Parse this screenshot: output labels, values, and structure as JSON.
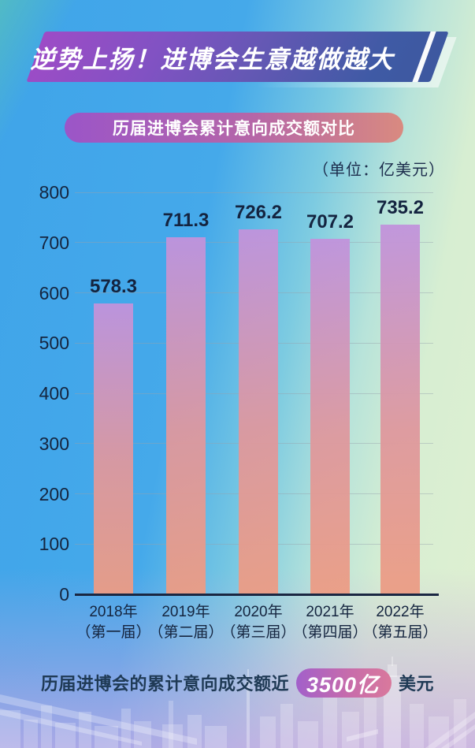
{
  "banner": {
    "title": "逆势上扬！进博会生意越做越大"
  },
  "unit_label": "（单位：亿美元）",
  "chart_data": {
    "type": "bar",
    "title": "历届进博会累计意向成交额对比",
    "unit": "亿美元",
    "categories": [
      "2018年",
      "2019年",
      "2020年",
      "2021年",
      "2022年"
    ],
    "categories_sub": [
      "（第一届）",
      "（第二届）",
      "（第三届）",
      "（第四届）",
      "（第五届）"
    ],
    "values": [
      578.3,
      711.3,
      726.2,
      707.2,
      735.2
    ],
    "xlabel": "",
    "ylabel": "",
    "ylim": [
      0,
      800
    ],
    "ytick_step": 100,
    "grid": true,
    "legend": "none"
  },
  "slogan": {
    "prefix": "历届进博会的累计意向成交额近",
    "highlight": "3500亿",
    "suffix": "美元"
  },
  "colors": {
    "banner_gradient_left": "#9d4cc6",
    "banner_gradient_right": "#3d589f",
    "subtitle_gradient_left": "#9b55c8",
    "subtitle_gradient_right": "#d98a80",
    "bar_top": "#c193dc",
    "bar_bottom": "#ec9c84",
    "highlight_pill_left": "#a260ca",
    "highlight_pill_right": "#d9799c",
    "text_dark": "#15253f",
    "bg_blue": "#3fa4e9",
    "bg_green": "#e0f0d1",
    "bg_lavender": "#c7a8e5"
  }
}
